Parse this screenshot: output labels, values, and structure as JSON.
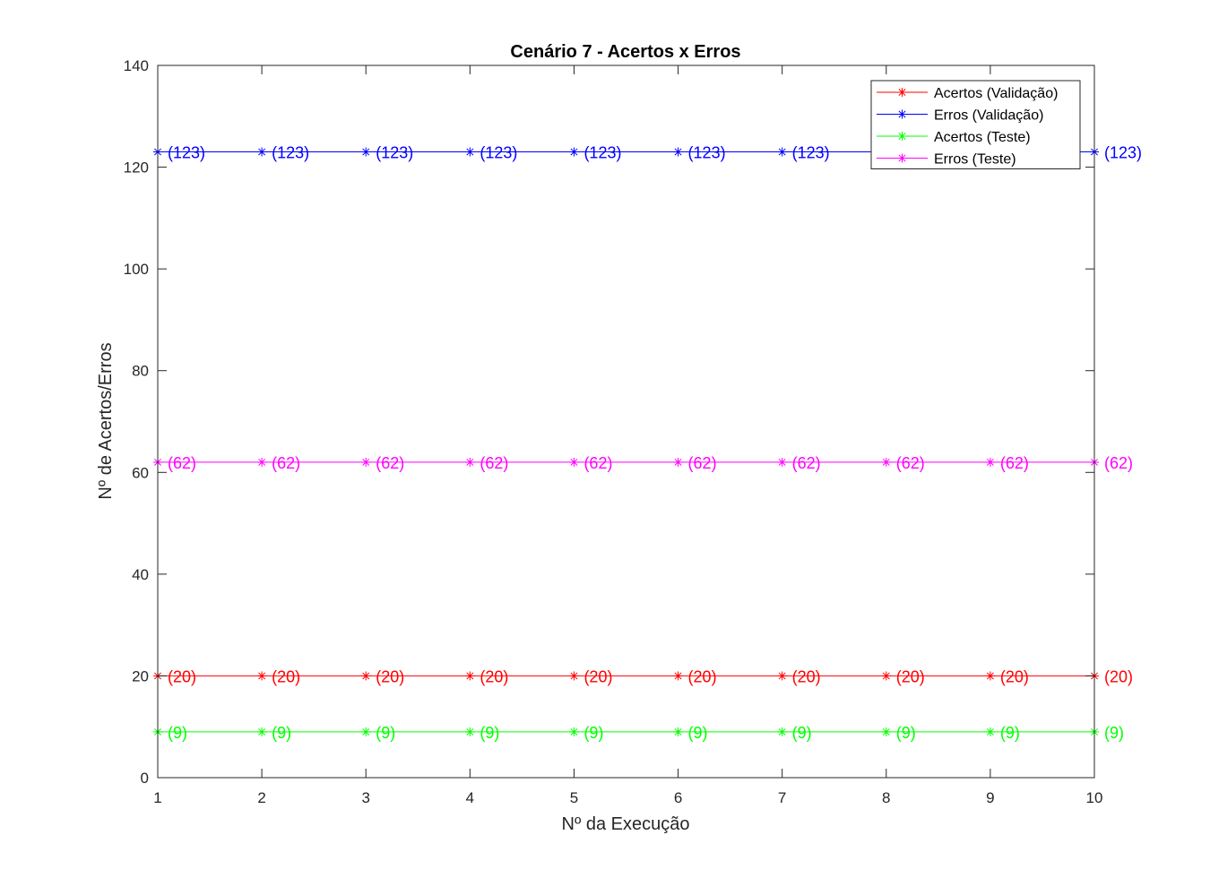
{
  "chart_data": {
    "type": "line",
    "title": "Cenário 7 - Acertos x Erros",
    "xlabel": "Nº da Execução",
    "ylabel": "Nº de Acertos/Erros",
    "x": [
      1,
      2,
      3,
      4,
      5,
      6,
      7,
      8,
      9,
      10
    ],
    "xlim": [
      1,
      10
    ],
    "ylim": [
      0,
      140
    ],
    "xticks": [
      1,
      2,
      3,
      4,
      5,
      6,
      7,
      8,
      9,
      10
    ],
    "yticks": [
      0,
      20,
      40,
      60,
      80,
      100,
      120,
      140
    ],
    "grid": false,
    "legend_position": "top-right",
    "marker": "asterisk",
    "series": [
      {
        "name": "Acertos (Validação)",
        "color": "#ff0000",
        "values": [
          20,
          20,
          20,
          20,
          20,
          20,
          20,
          20,
          20,
          20
        ],
        "labels": [
          "(20)",
          "(20)",
          "(20)",
          "(20)",
          "(20)",
          "(20)",
          "(20)",
          "(20)",
          "(20)",
          "(20)"
        ]
      },
      {
        "name": "Erros (Validação)",
        "color": "#0000ff",
        "values": [
          123,
          123,
          123,
          123,
          123,
          123,
          123,
          123,
          123,
          123
        ],
        "labels": [
          "(123)",
          "(123)",
          "(123)",
          "(123)",
          "(123)",
          "(123)",
          "(123)",
          "(123)",
          "(123)",
          "(123)"
        ]
      },
      {
        "name": "Acertos (Teste)",
        "color": "#00ff00",
        "values": [
          9,
          9,
          9,
          9,
          9,
          9,
          9,
          9,
          9,
          9
        ],
        "labels": [
          "(9)",
          "(9)",
          "(9)",
          "(9)",
          "(9)",
          "(9)",
          "(9)",
          "(9)",
          "(9)",
          "(9)"
        ]
      },
      {
        "name": "Erros (Teste)",
        "color": "#ff00ff",
        "values": [
          62,
          62,
          62,
          62,
          62,
          62,
          62,
          62,
          62,
          62
        ],
        "labels": [
          "(62)",
          "(62)",
          "(62)",
          "(62)",
          "(62)",
          "(62)",
          "(62)",
          "(62)",
          "(62)",
          "(62)"
        ]
      }
    ]
  }
}
